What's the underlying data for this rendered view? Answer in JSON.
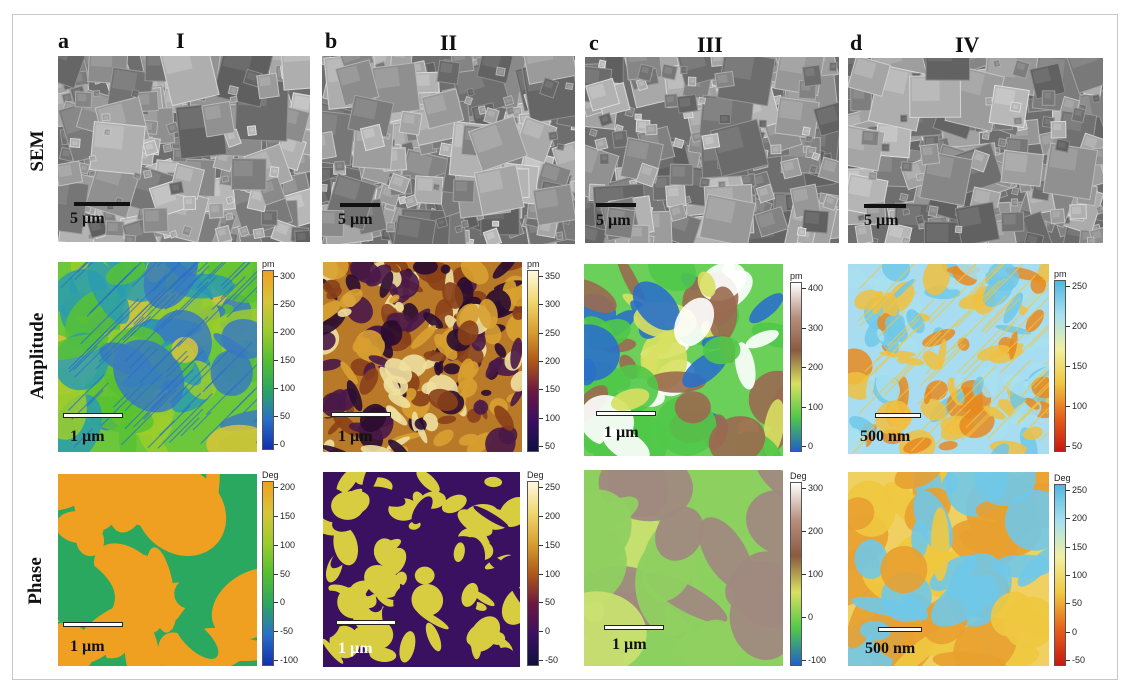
{
  "columns": [
    {
      "letter": "a",
      "roman": "I"
    },
    {
      "letter": "b",
      "roman": "II"
    },
    {
      "letter": "c",
      "roman": "III"
    },
    {
      "letter": "d",
      "roman": "IV"
    }
  ],
  "rows": [
    "SEM",
    "Amplitude",
    "Phase"
  ],
  "sem_scalebars": [
    "5 µm",
    "5 µm",
    "5 µm",
    "5 µm"
  ],
  "amplitude": [
    {
      "scalebar": "1 µm",
      "unit": "pm",
      "ticks": [
        "300",
        "250",
        "200",
        "150",
        "100",
        "50",
        "0"
      ],
      "colors": [
        "#f0a020",
        "#d8c43a",
        "#9ccc2c",
        "#55c030",
        "#2aa860",
        "#2a70c8",
        "#1030b0"
      ]
    },
    {
      "scalebar": "1 µm",
      "unit": "pm",
      "ticks": [
        "350",
        "300",
        "250",
        "200",
        "150",
        "100",
        "50"
      ],
      "colors": [
        "#fff8e0",
        "#f0d870",
        "#d8a030",
        "#b05818",
        "#6a1840",
        "#3a1060",
        "#101040"
      ]
    },
    {
      "scalebar": "1 µm",
      "unit": "pm",
      "ticks": [
        "400",
        "300",
        "200",
        "100",
        "0"
      ],
      "colors": [
        "#ffffff",
        "#b89080",
        "#8a5a40",
        "#d8e060",
        "#50c848",
        "#2060c8"
      ]
    },
    {
      "scalebar": "500 nm",
      "unit": "pm",
      "ticks": [
        "250",
        "200",
        "150",
        "100",
        "50"
      ],
      "colors": [
        "#50b8e0",
        "#a8e0f0",
        "#f0f0a0",
        "#f0c840",
        "#e86018",
        "#c81810"
      ]
    }
  ],
  "phase": [
    {
      "scalebar": "1 µm",
      "unit": "Deg",
      "ticks": [
        "200",
        "150",
        "100",
        "50",
        "0",
        "-50",
        "-100"
      ],
      "colors": [
        "#f0a020",
        "#d8c43a",
        "#9ccc2c",
        "#55c030",
        "#2aa860",
        "#2a70c8",
        "#1030b0"
      ]
    },
    {
      "scalebar": "1 µm",
      "unit": "Deg",
      "ticks": [
        "250",
        "200",
        "150",
        "100",
        "50",
        "0",
        "-50"
      ],
      "colors": [
        "#fff8e0",
        "#f0d870",
        "#d8a030",
        "#b05818",
        "#6a1840",
        "#3a1060",
        "#101040"
      ]
    },
    {
      "scalebar": "1 µm",
      "unit": "Deg",
      "ticks": [
        "300",
        "200",
        "100",
        "0",
        "-100"
      ],
      "colors": [
        "#ffffff",
        "#b89080",
        "#8a5a40",
        "#d8e060",
        "#50c848",
        "#2060c8"
      ]
    },
    {
      "scalebar": "500 nm",
      "unit": "Deg",
      "ticks": [
        "250",
        "200",
        "150",
        "100",
        "50",
        "0",
        "-50"
      ],
      "colors": [
        "#50b8e0",
        "#a8e0f0",
        "#f0f0a0",
        "#f0c840",
        "#e86018",
        "#c81810"
      ]
    }
  ]
}
